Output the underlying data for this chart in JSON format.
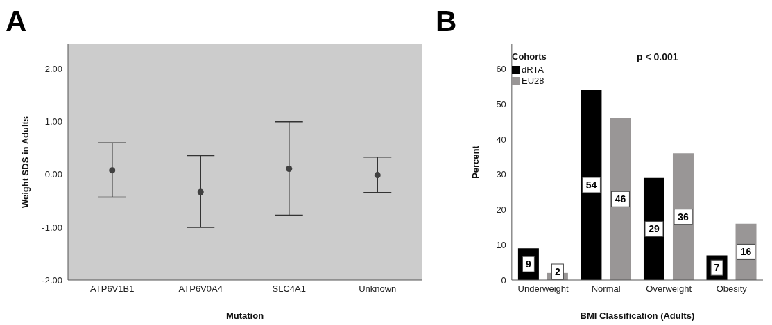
{
  "chart_data": [
    {
      "type": "scatter",
      "title": "A",
      "xlabel": "Mutation",
      "ylabel": "Weight SDS in Adults",
      "categories": [
        "ATP6V1B1",
        "ATP6V0A4",
        "SLC4A1",
        "Unknown"
      ],
      "series": [
        {
          "color": "#404040",
          "values": [
            0.08,
            -0.33,
            0.11,
            -0.01
          ],
          "errors": [
            [
              -0.43,
              0.6
            ],
            [
              -1.0,
              0.36
            ],
            [
              -0.77,
              1.0
            ],
            [
              -0.34,
              0.33
            ]
          ]
        }
      ],
      "ylim": [
        -2,
        2.47
      ],
      "yticks": [
        {
          "value": -2,
          "label": "-2.00"
        },
        {
          "value": -1,
          "label": "-1.00"
        },
        {
          "value": 0,
          "label": "0.00"
        },
        {
          "value": 1,
          "label": "1.00"
        },
        {
          "value": 2,
          "label": "2.00"
        }
      ],
      "marker": "circle",
      "grid": false,
      "legend": false
    },
    {
      "type": "bar",
      "title": "B",
      "xlabel": "BMI Classification (Adults)",
      "ylabel": "Percent",
      "legend_title": "Cohorts",
      "categories": [
        "Underweight",
        "Normal",
        "Overweight",
        "Obesity"
      ],
      "series": [
        {
          "name": "dRTA",
          "color": "#000000",
          "values": [
            9,
            54,
            29,
            7
          ]
        },
        {
          "name": "EU28",
          "color": "#999696",
          "values": [
            2,
            46,
            36,
            16
          ]
        }
      ],
      "ylim": [
        0,
        67
      ],
      "yticks": [
        0,
        10,
        20,
        30,
        40,
        50,
        60
      ],
      "annotations": [
        "p < 0.001"
      ],
      "data_labels": true,
      "grid": false,
      "legend": "top left"
    }
  ]
}
